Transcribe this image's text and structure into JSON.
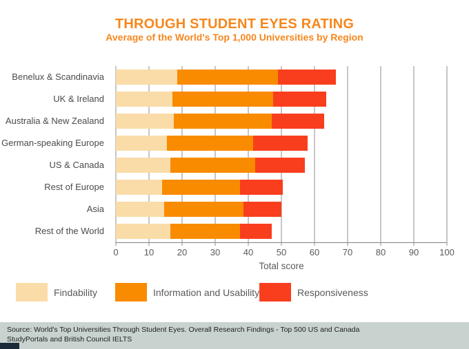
{
  "header": {
    "title": "THROUGH STUDENT EYES RATING",
    "subtitle": "Average of the World's Top 1,000 Universities by Region"
  },
  "colors": {
    "title_orange": "#F6871D",
    "findability": "#F9DCA8",
    "information_usability": "#F98B00",
    "responsiveness": "#F93E1E",
    "axis_text": "#58595B",
    "gridline": "#8C8C8C",
    "footer_background": "#C8D3D0",
    "footer_accent": "#1C2B39"
  },
  "chart_data": {
    "type": "bar",
    "orientation": "horizontal",
    "stacked": true,
    "title": "THROUGH STUDENT EYES RATING",
    "subtitle": "Average of the World's Top 1,000 Universities by Region",
    "categories": [
      "Benelux & Scandinavia",
      "UK & Ireland",
      "Australia & New Zealand",
      "German-speaking Europe",
      "US & Canada",
      "Rest of Europe",
      "Asia",
      "Rest of the World"
    ],
    "series": [
      {
        "name": "Findability",
        "color": "#F9DCA8",
        "values": [
          18.5,
          17,
          17.5,
          15.5,
          16.5,
          14,
          14.5,
          16.5
        ]
      },
      {
        "name": "Information and Usability",
        "color": "#F98B00",
        "values": [
          30.5,
          30.5,
          29.5,
          26,
          25.5,
          23.5,
          24,
          21
        ]
      },
      {
        "name": "Responsiveness",
        "color": "#F93E1E",
        "values": [
          17.5,
          16,
          16,
          16.5,
          15,
          13,
          11.5,
          9.5
        ]
      }
    ],
    "totals": [
      66.5,
      63.5,
      63,
      58,
      57,
      50.5,
      50,
      47
    ],
    "xlabel": "Total score",
    "ylabel": "",
    "xlim": [
      0,
      100
    ],
    "xticks": [
      0,
      10,
      20,
      30,
      40,
      50,
      60,
      70,
      80,
      90,
      100
    ],
    "grid": true,
    "legend_position": "bottom"
  },
  "legend": {
    "items": [
      {
        "label": "Findability",
        "color": "#F9DCA8"
      },
      {
        "label": "Information and Usability",
        "color": "#F98B00"
      },
      {
        "label": "Responsiveness",
        "color": "#F93E1E"
      }
    ]
  },
  "footer": {
    "line1": "Source: World's Top Universities Through Student Eyes. Overall Research Findings - Top 500 US and Canada",
    "line2": "StudyPortals and British Council IELTS"
  }
}
